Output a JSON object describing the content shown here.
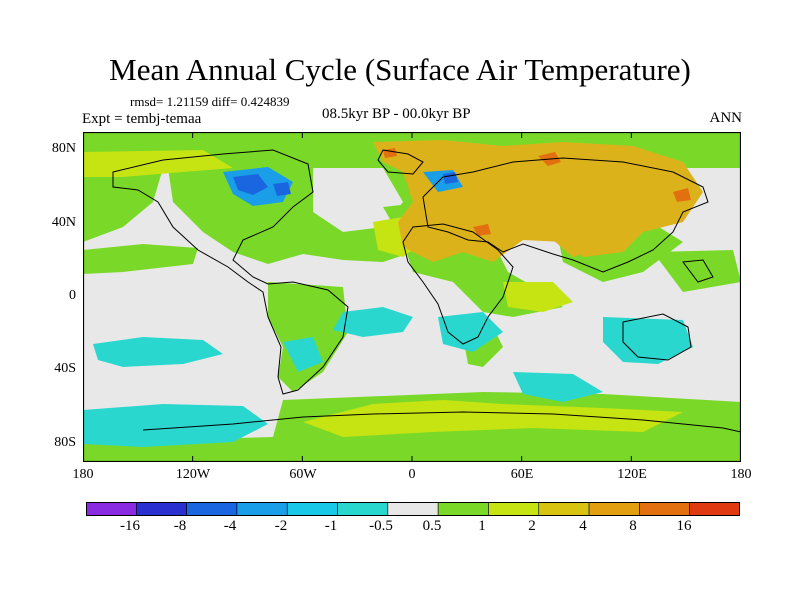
{
  "title": "Mean Annual Cycle (Surface Air Temperature)",
  "stats": {
    "text": "rmsd= 1.21159 diff= 0.424839"
  },
  "experiment": "Expt = tembj-temaa",
  "period": "08.5kyr BP - 00.0kyr BP",
  "season": "ANN",
  "axes": {
    "y_labels": [
      "80N",
      "40N",
      "0",
      "40S",
      "80S"
    ],
    "x_labels": [
      "180",
      "120W",
      "60W",
      "0",
      "60E",
      "120E",
      "180"
    ]
  },
  "colorbar": {
    "labels": [
      "-16",
      "-8",
      "-4",
      "-2",
      "-1",
      "-0.5",
      "0.5",
      "1",
      "2",
      "4",
      "8",
      "16"
    ],
    "colors": [
      "#8a2be2",
      "#2a2fd0",
      "#1a66e0",
      "#1a9ee8",
      "#19c8e6",
      "#2ad7cf",
      "#e8e8e8",
      "#7ad928",
      "#c6e312",
      "#d8c410",
      "#e2a010",
      "#e27010",
      "#e03a10"
    ]
  },
  "map_colors": {
    "ocean_neutral": "#e8e8e8",
    "warm_light": "#7ad928",
    "warm_medium": "#c6e312",
    "warm_strong": "#dcb21a",
    "warm_hot": "#e27010",
    "cool_light": "#2ad7cf",
    "cool_medium": "#1a9ee8",
    "cool_strong": "#1a66e0"
  }
}
